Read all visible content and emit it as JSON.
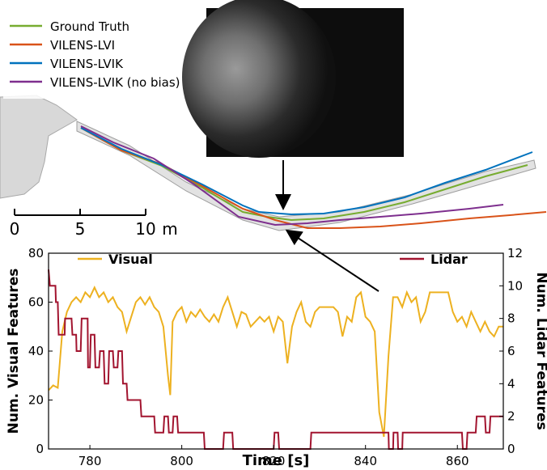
{
  "map_panel": {
    "legend": [
      {
        "label": "Ground Truth",
        "color": "#77ac30"
      },
      {
        "label": "VILENS-LVI",
        "color": "#d95319"
      },
      {
        "label": "VILENS-LVIK",
        "color": "#0072bd"
      },
      {
        "label": "VILENS-LVIK (no bias)",
        "color": "#7e2f8e"
      }
    ],
    "scale_bar": {
      "ticks": [
        "0",
        "5",
        "10"
      ],
      "unit": "m"
    }
  },
  "chart_data": {
    "type": "line",
    "xlabel": "Time [s]",
    "ylabel_left": "Num. Visual Features",
    "ylabel_right": "Num. Lidar Features",
    "xlim": [
      771,
      870
    ],
    "ylim_left": [
      0,
      80
    ],
    "ylim_right": [
      0,
      12
    ],
    "xticks": [
      780,
      800,
      820,
      840,
      860
    ],
    "yticks_left": [
      0,
      20,
      40,
      60,
      80
    ],
    "yticks_right": [
      0,
      2,
      4,
      6,
      8,
      10,
      12
    ],
    "grid": false,
    "series": [
      {
        "name": "Visual",
        "axis": "left",
        "color": "#edb120",
        "points": [
          [
            771,
            24
          ],
          [
            772,
            26
          ],
          [
            773,
            25
          ],
          [
            774,
            48
          ],
          [
            775,
            56
          ],
          [
            776,
            60
          ],
          [
            777,
            62
          ],
          [
            778,
            60
          ],
          [
            779,
            64
          ],
          [
            780,
            62
          ],
          [
            781,
            66
          ],
          [
            782,
            62
          ],
          [
            783,
            64
          ],
          [
            784,
            60
          ],
          [
            785,
            62
          ],
          [
            786,
            58
          ],
          [
            787,
            56
          ],
          [
            788,
            48
          ],
          [
            789,
            54
          ],
          [
            790,
            60
          ],
          [
            791,
            62
          ],
          [
            792,
            59
          ],
          [
            793,
            62
          ],
          [
            794,
            58
          ],
          [
            795,
            56
          ],
          [
            796,
            50
          ],
          [
            797,
            30
          ],
          [
            797.5,
            22
          ],
          [
            798,
            52
          ],
          [
            799,
            56
          ],
          [
            800,
            58
          ],
          [
            801,
            52
          ],
          [
            802,
            56
          ],
          [
            803,
            54
          ],
          [
            804,
            57
          ],
          [
            805,
            54
          ],
          [
            806,
            52
          ],
          [
            807,
            55
          ],
          [
            808,
            52
          ],
          [
            809,
            58
          ],
          [
            810,
            62
          ],
          [
            811,
            56
          ],
          [
            812,
            50
          ],
          [
            813,
            56
          ],
          [
            814,
            55
          ],
          [
            815,
            50
          ],
          [
            816,
            52
          ],
          [
            817,
            54
          ],
          [
            818,
            52
          ],
          [
            819,
            54
          ],
          [
            820,
            48
          ],
          [
            821,
            54
          ],
          [
            822,
            52
          ],
          [
            823,
            35
          ],
          [
            824,
            50
          ],
          [
            825,
            56
          ],
          [
            826,
            60
          ],
          [
            827,
            52
          ],
          [
            828,
            50
          ],
          [
            829,
            56
          ],
          [
            830,
            58
          ],
          [
            831,
            58
          ],
          [
            832,
            58
          ],
          [
            833,
            58
          ],
          [
            834,
            56
          ],
          [
            835,
            46
          ],
          [
            836,
            54
          ],
          [
            837,
            52
          ],
          [
            838,
            62
          ],
          [
            839,
            64
          ],
          [
            840,
            54
          ],
          [
            841,
            52
          ],
          [
            842,
            48
          ],
          [
            843,
            15
          ],
          [
            844,
            5
          ],
          [
            845,
            38
          ],
          [
            846,
            62
          ],
          [
            847,
            62
          ],
          [
            848,
            58
          ],
          [
            849,
            64
          ],
          [
            850,
            60
          ],
          [
            851,
            62
          ],
          [
            852,
            52
          ],
          [
            853,
            56
          ],
          [
            854,
            64
          ],
          [
            855,
            64
          ],
          [
            856,
            64
          ],
          [
            857,
            64
          ],
          [
            858,
            64
          ],
          [
            859,
            56
          ],
          [
            860,
            52
          ],
          [
            861,
            54
          ],
          [
            862,
            50
          ],
          [
            863,
            56
          ],
          [
            864,
            52
          ],
          [
            865,
            48
          ],
          [
            866,
            52
          ],
          [
            867,
            48
          ],
          [
            868,
            46
          ],
          [
            869,
            50
          ],
          [
            870,
            50
          ]
        ]
      },
      {
        "name": "Lidar",
        "axis": "right",
        "color": "#a2142f",
        "points": [
          [
            771,
            11
          ],
          [
            771.3,
            10
          ],
          [
            772.5,
            10
          ],
          [
            772.6,
            9
          ],
          [
            773,
            9
          ],
          [
            773.2,
            7
          ],
          [
            774.5,
            7
          ],
          [
            774.6,
            8
          ],
          [
            776,
            8
          ],
          [
            776.2,
            7
          ],
          [
            777,
            7
          ],
          [
            777.1,
            6
          ],
          [
            778,
            6
          ],
          [
            778.2,
            8
          ],
          [
            779.5,
            8
          ],
          [
            779.6,
            5
          ],
          [
            780,
            5
          ],
          [
            780.2,
            7
          ],
          [
            781,
            7
          ],
          [
            781.2,
            5
          ],
          [
            782,
            5
          ],
          [
            782.2,
            6
          ],
          [
            783,
            6
          ],
          [
            783.2,
            4
          ],
          [
            784,
            4
          ],
          [
            784.2,
            6
          ],
          [
            785,
            6
          ],
          [
            785.2,
            5
          ],
          [
            786,
            5
          ],
          [
            786.2,
            6
          ],
          [
            787,
            6
          ],
          [
            787.2,
            4
          ],
          [
            788,
            4
          ],
          [
            788.2,
            3
          ],
          [
            791,
            3
          ],
          [
            791.2,
            2
          ],
          [
            794,
            2
          ],
          [
            794.2,
            1
          ],
          [
            796,
            1
          ],
          [
            796.2,
            2
          ],
          [
            797,
            2
          ],
          [
            797.2,
            1
          ],
          [
            798,
            1
          ],
          [
            798.2,
            2
          ],
          [
            799,
            2
          ],
          [
            799.2,
            1
          ],
          [
            804.8,
            1
          ],
          [
            805,
            0
          ],
          [
            809,
            0
          ],
          [
            809.2,
            1
          ],
          [
            811,
            1
          ],
          [
            811.2,
            0
          ],
          [
            820,
            0
          ],
          [
            820.2,
            1
          ],
          [
            821,
            1
          ],
          [
            821.2,
            0
          ],
          [
            828,
            0
          ],
          [
            828.2,
            1
          ],
          [
            845,
            1
          ],
          [
            845.1,
            0
          ],
          [
            846,
            0
          ],
          [
            846.1,
            1
          ],
          [
            847,
            1
          ],
          [
            847.1,
            0
          ],
          [
            848,
            0
          ],
          [
            848.1,
            1
          ],
          [
            861,
            1
          ],
          [
            861.2,
            0
          ],
          [
            862,
            0
          ],
          [
            862.2,
            1
          ],
          [
            864,
            1
          ],
          [
            864.2,
            2
          ],
          [
            866,
            2
          ],
          [
            866.2,
            1
          ],
          [
            867,
            1
          ],
          [
            867.2,
            2
          ],
          [
            870,
            2
          ]
        ]
      }
    ]
  }
}
